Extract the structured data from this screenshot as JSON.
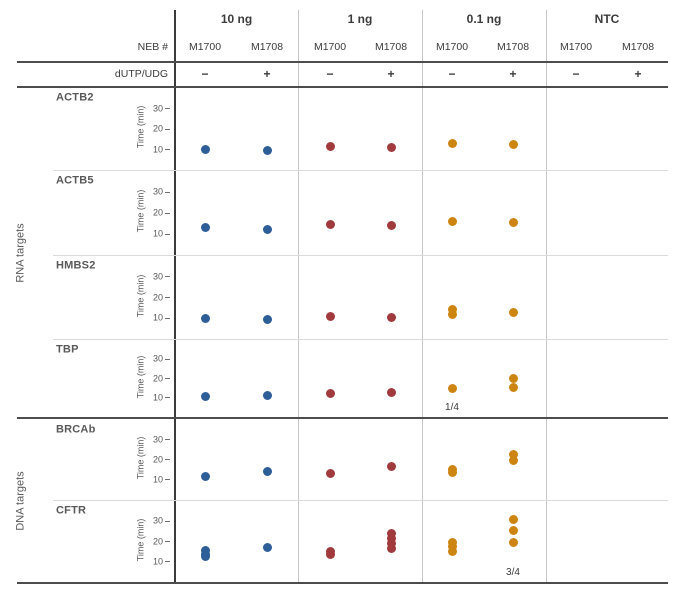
{
  "header": {
    "neb_label": "NEB #",
    "dutp_label": "dUTP/UDG",
    "concentrations": [
      "10 ng",
      "1 ng",
      "0.1 ng",
      "NTC"
    ],
    "enzymes": [
      "M1700",
      "M1708"
    ],
    "dutp_signs": [
      "−",
      "+"
    ]
  },
  "series_colors": {
    "10 ng": "#2d5e97",
    "1 ng": "#a03a3c",
    "0.1 ng": "#cd8512",
    "NTC": "#888888"
  },
  "chart_data": {
    "type": "scatter",
    "ylabel": "Time (min)",
    "ylim": [
      0,
      40
    ],
    "yticks": [
      10,
      20,
      30
    ],
    "columns": [
      "10 ng M1700",
      "10 ng M1708",
      "1 ng M1700",
      "1 ng M1708",
      "0.1 ng M1700",
      "0.1 ng M1708",
      "NTC M1700",
      "NTC M1708"
    ],
    "rows": [
      {
        "target": "ACTB2",
        "group": "RNA targets",
        "values": [
          [
            10
          ],
          [
            9.5
          ],
          [
            11.5
          ],
          [
            11
          ],
          [
            13
          ],
          [
            12.5
          ],
          [],
          []
        ]
      },
      {
        "target": "ACTB5",
        "group": "RNA targets",
        "values": [
          [
            13
          ],
          [
            12
          ],
          [
            14.5
          ],
          [
            14
          ],
          [
            16
          ],
          [
            15.5
          ],
          [],
          []
        ]
      },
      {
        "target": "HMBS2",
        "group": "RNA targets",
        "values": [
          [
            10
          ],
          [
            9.5
          ],
          [
            11
          ],
          [
            10.5
          ],
          [
            14,
            12
          ],
          [
            13
          ],
          [],
          []
        ]
      },
      {
        "target": "TBP",
        "group": "RNA targets",
        "values": [
          [
            10.5
          ],
          [
            11
          ],
          [
            12
          ],
          [
            12.5
          ],
          [
            15
          ],
          [
            20,
            15.5
          ],
          [],
          []
        ]
      },
      {
        "target": "BRCAb",
        "group": "DNA targets",
        "values": [
          [
            11.5
          ],
          [
            14
          ],
          [
            13
          ],
          [
            16.5
          ],
          [
            15,
            13.5
          ],
          [
            22.5,
            19.5
          ],
          [],
          []
        ]
      },
      {
        "target": "CFTR",
        "group": "DNA targets",
        "values": [
          [
            15.5,
            13.5,
            12.5
          ],
          [
            17
          ],
          [
            15,
            13.5
          ],
          [
            24,
            21.5,
            19,
            16.5
          ],
          [
            19.5,
            17.5,
            15
          ],
          [
            31,
            25.5,
            19.5
          ],
          [],
          []
        ]
      }
    ],
    "annotations": [
      {
        "row": "TBP",
        "column": "0.1 ng M1700",
        "text": "1/4"
      },
      {
        "row": "CFTR",
        "column": "0.1 ng M1708",
        "text": "3/4"
      }
    ]
  }
}
